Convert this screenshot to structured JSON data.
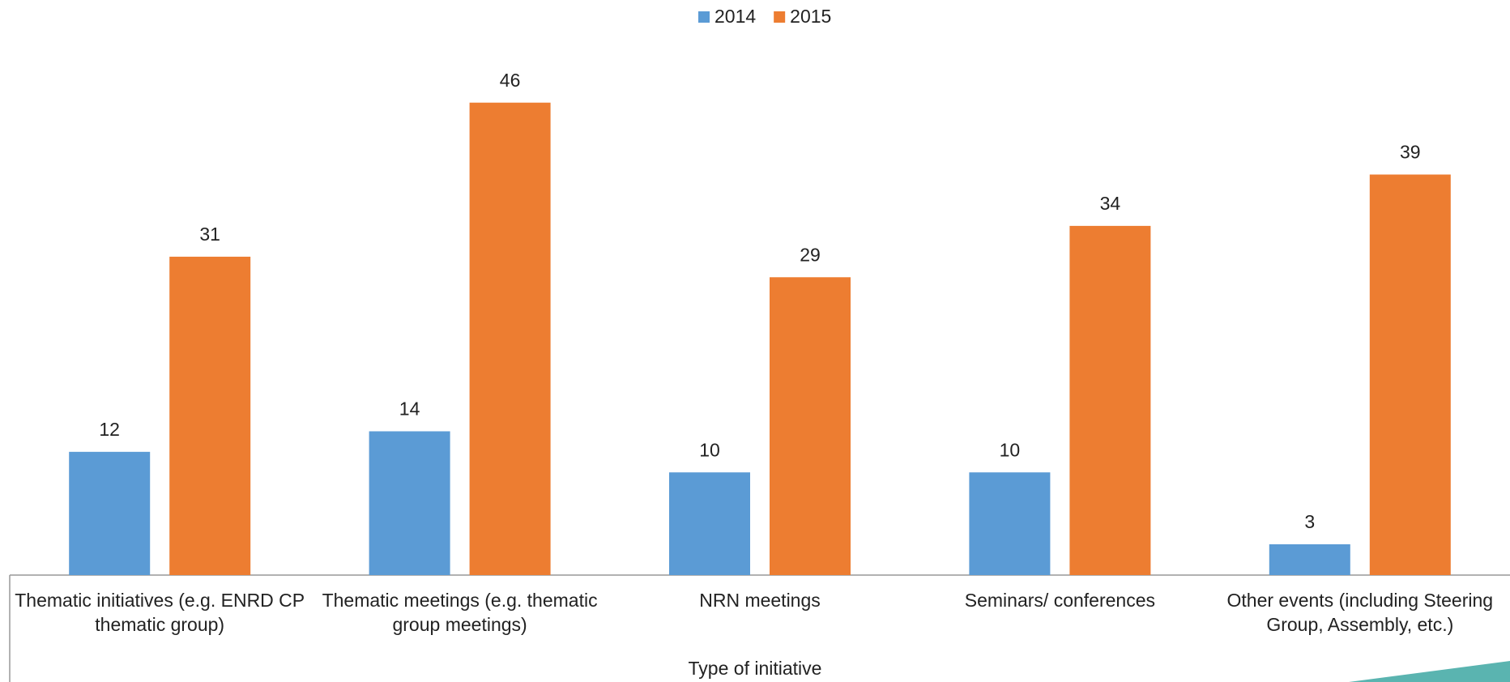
{
  "chart_data": {
    "type": "bar",
    "x_label": "Type of initiative",
    "categories": [
      "Thematic initiatives (e.g. ENRD CP thematic group)",
      "Thematic meetings (e.g. thematic group meetings)",
      "NRN meetings",
      "Seminars/ conferences",
      "Other events (including Steering Group, Assembly, etc.)"
    ],
    "series": [
      {
        "name": "2014",
        "color": "#5b9bd5",
        "values": [
          12,
          14,
          10,
          10,
          3
        ]
      },
      {
        "name": "2015",
        "color": "#ed7d31",
        "values": [
          31,
          46,
          29,
          34,
          39
        ]
      }
    ],
    "legend": "top"
  }
}
